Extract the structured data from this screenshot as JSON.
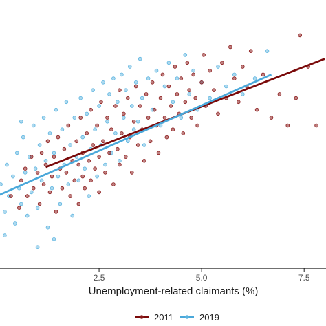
{
  "chart_data": {
    "type": "scatter",
    "title": "",
    "xlabel": "Unemployment-related claimants (%)",
    "ylabel": "",
    "xlim": [
      0.0,
      8.0
    ],
    "ylim": [
      -0.8,
      2.2
    ],
    "xticks": [
      2.5,
      5.0,
      7.5
    ],
    "xtick_labels": [
      "2.5",
      "5.0",
      "7.5"
    ],
    "grid": false,
    "legend_position": "bottom",
    "series": [
      {
        "name": "2011",
        "color": "#8b1a1a",
        "points": [
          [
            0.35,
            0.05
          ],
          [
            0.55,
            -0.1
          ],
          [
            0.6,
            0.25
          ],
          [
            0.7,
            0.4
          ],
          [
            0.75,
            0.05
          ],
          [
            0.85,
            0.55
          ],
          [
            0.9,
            0.15
          ],
          [
            1.0,
            0.35
          ],
          [
            1.05,
            -0.05
          ],
          [
            1.1,
            0.6
          ],
          [
            1.15,
            0.2
          ],
          [
            1.2,
            0.45
          ],
          [
            1.25,
            0.75
          ],
          [
            1.3,
            0.1
          ],
          [
            1.35,
            0.3
          ],
          [
            1.4,
            0.55
          ],
          [
            1.45,
            -0.15
          ],
          [
            1.5,
            0.8
          ],
          [
            1.55,
            0.4
          ],
          [
            1.6,
            0.15
          ],
          [
            1.65,
            0.65
          ],
          [
            1.7,
            0.35
          ],
          [
            1.75,
            0.95
          ],
          [
            1.8,
            0.05
          ],
          [
            1.85,
            0.5
          ],
          [
            1.9,
            0.25
          ],
          [
            1.95,
            0.75
          ],
          [
            2.0,
            0.45
          ],
          [
            2.0,
            -0.05
          ],
          [
            2.05,
            1.05
          ],
          [
            2.1,
            0.3
          ],
          [
            2.1,
            0.6
          ],
          [
            2.15,
            0.15
          ],
          [
            2.2,
            0.85
          ],
          [
            2.25,
            0.5
          ],
          [
            2.3,
            0.25
          ],
          [
            2.3,
            1.15
          ],
          [
            2.35,
            0.7
          ],
          [
            2.4,
            0.4
          ],
          [
            2.45,
            0.95
          ],
          [
            2.5,
            0.55
          ],
          [
            2.5,
            0.1
          ],
          [
            2.55,
            1.25
          ],
          [
            2.6,
            0.75
          ],
          [
            2.65,
            0.35
          ],
          [
            2.7,
            1.05
          ],
          [
            2.75,
            0.6
          ],
          [
            2.8,
            0.9
          ],
          [
            2.85,
            0.2
          ],
          [
            2.9,
            1.2
          ],
          [
            2.95,
            0.65
          ],
          [
            3.0,
            0.45
          ],
          [
            3.0,
            1.4
          ],
          [
            3.05,
            0.85
          ],
          [
            3.1,
            1.1
          ],
          [
            3.15,
            0.55
          ],
          [
            3.2,
            1.3
          ],
          [
            3.25,
            0.8
          ],
          [
            3.3,
            0.35
          ],
          [
            3.35,
            1.0
          ],
          [
            3.4,
            1.45
          ],
          [
            3.45,
            0.7
          ],
          [
            3.5,
            1.2
          ],
          [
            3.55,
            0.9
          ],
          [
            3.6,
            0.5
          ],
          [
            3.65,
            1.35
          ],
          [
            3.7,
            1.05
          ],
          [
            3.75,
            0.75
          ],
          [
            3.8,
            1.5
          ],
          [
            3.85,
            1.15
          ],
          [
            3.9,
            0.95
          ],
          [
            3.95,
            0.6
          ],
          [
            4.0,
            1.3
          ],
          [
            4.05,
            1.6
          ],
          [
            4.1,
            1.05
          ],
          [
            4.15,
            0.8
          ],
          [
            4.2,
            1.45
          ],
          [
            4.25,
            1.2
          ],
          [
            4.3,
            0.9
          ],
          [
            4.35,
            1.7
          ],
          [
            4.4,
            1.35
          ],
          [
            4.45,
            1.1
          ],
          [
            4.5,
            1.55
          ],
          [
            4.55,
            0.85
          ],
          [
            4.6,
            1.25
          ],
          [
            4.65,
            1.75
          ],
          [
            4.7,
            1.4
          ],
          [
            4.75,
            1.05
          ],
          [
            4.8,
            1.6
          ],
          [
            4.85,
            1.3
          ],
          [
            4.9,
            0.95
          ],
          [
            5.0,
            1.5
          ],
          [
            5.05,
            1.85
          ],
          [
            5.1,
            1.2
          ],
          [
            5.2,
            1.65
          ],
          [
            5.3,
            1.4
          ],
          [
            5.4,
            1.1
          ],
          [
            5.5,
            1.75
          ],
          [
            5.6,
            1.3
          ],
          [
            5.7,
            1.95
          ],
          [
            5.8,
            1.55
          ],
          [
            5.9,
            1.25
          ],
          [
            6.0,
            1.7
          ],
          [
            6.1,
            1.45
          ],
          [
            6.2,
            1.9
          ],
          [
            6.35,
            1.15
          ],
          [
            6.5,
            1.6
          ],
          [
            6.7,
            1.05
          ],
          [
            6.9,
            1.35
          ],
          [
            7.1,
            0.95
          ],
          [
            7.3,
            1.3
          ],
          [
            7.4,
            2.1
          ],
          [
            7.6,
            1.7
          ],
          [
            7.8,
            0.95
          ]
        ],
        "trend": [
          [
            1.2,
            0.42
          ],
          [
            8.0,
            1.8
          ]
        ]
      },
      {
        "name": "2019",
        "color": "#5bb4e0",
        "points": [
          [
            0.1,
            0.2
          ],
          [
            0.2,
            -0.15
          ],
          [
            0.25,
            0.45
          ],
          [
            0.3,
            0.05
          ],
          [
            0.4,
            0.3
          ],
          [
            0.45,
            -0.3
          ],
          [
            0.5,
            0.6
          ],
          [
            0.55,
            0.15
          ],
          [
            0.6,
            -0.05
          ],
          [
            0.65,
            0.8
          ],
          [
            0.7,
            0.35
          ],
          [
            0.75,
            -0.2
          ],
          [
            0.8,
            0.55
          ],
          [
            0.85,
            0.1
          ],
          [
            0.9,
            0.95
          ],
          [
            0.95,
            0.4
          ],
          [
            1.0,
            -0.1
          ],
          [
            1.05,
            0.7
          ],
          [
            1.1,
            0.25
          ],
          [
            1.15,
            1.05
          ],
          [
            1.2,
            0.5
          ],
          [
            1.25,
            -0.35
          ],
          [
            1.3,
            0.85
          ],
          [
            1.35,
            0.15
          ],
          [
            1.4,
            0.6
          ],
          [
            1.45,
            1.15
          ],
          [
            1.5,
            0.3
          ],
          [
            1.55,
            -0.05
          ],
          [
            1.6,
            0.9
          ],
          [
            1.65,
            0.45
          ],
          [
            1.7,
            1.25
          ],
          [
            1.75,
            0.2
          ],
          [
            1.8,
            0.7
          ],
          [
            1.85,
            -0.2
          ],
          [
            1.9,
            1.05
          ],
          [
            1.95,
            0.55
          ],
          [
            2.0,
            0.25
          ],
          [
            2.05,
            1.3
          ],
          [
            2.1,
            0.8
          ],
          [
            2.15,
            0.4
          ],
          [
            2.2,
            1.1
          ],
          [
            2.25,
            0.05
          ],
          [
            2.3,
            0.65
          ],
          [
            2.35,
            1.4
          ],
          [
            2.4,
            0.9
          ],
          [
            2.45,
            0.3
          ],
          [
            2.5,
            1.2
          ],
          [
            2.55,
            0.7
          ],
          [
            2.6,
            1.5
          ],
          [
            2.65,
            0.45
          ],
          [
            2.7,
            1.0
          ],
          [
            2.75,
            1.35
          ],
          [
            2.8,
            0.6
          ],
          [
            2.85,
            1.55
          ],
          [
            2.9,
            0.85
          ],
          [
            2.95,
            1.25
          ],
          [
            3.0,
            0.5
          ],
          [
            3.05,
            1.6
          ],
          [
            3.1,
            1.05
          ],
          [
            3.15,
            1.4
          ],
          [
            3.2,
            0.75
          ],
          [
            3.25,
            1.7
          ],
          [
            3.3,
            1.2
          ],
          [
            3.35,
            0.9
          ],
          [
            3.4,
            1.5
          ],
          [
            3.45,
            1.0
          ],
          [
            3.5,
            1.8
          ],
          [
            3.55,
            1.3
          ],
          [
            3.6,
            0.7
          ],
          [
            3.7,
            1.55
          ],
          [
            3.8,
            1.15
          ],
          [
            3.9,
            1.65
          ],
          [
            4.0,
            0.95
          ],
          [
            4.1,
            1.45
          ],
          [
            4.2,
            1.75
          ],
          [
            4.3,
            1.25
          ],
          [
            4.4,
            1.55
          ],
          [
            4.5,
            1.05
          ],
          [
            4.6,
            1.85
          ],
          [
            4.7,
            1.35
          ],
          [
            4.8,
            1.65
          ],
          [
            4.9,
            1.15
          ],
          [
            5.0,
            1.5
          ],
          [
            5.2,
            1.3
          ],
          [
            5.4,
            1.7
          ],
          [
            5.6,
            1.45
          ],
          [
            5.8,
            1.6
          ],
          [
            6.0,
            1.35
          ],
          [
            6.3,
            1.55
          ],
          [
            6.6,
            1.9
          ],
          [
            1.0,
            -0.6
          ],
          [
            1.4,
            -0.5
          ],
          [
            0.2,
            -0.45
          ],
          [
            0.6,
            1.0
          ]
        ],
        "trend": [
          [
            0.0,
            0.05
          ],
          [
            6.7,
            1.6
          ]
        ]
      }
    ]
  }
}
